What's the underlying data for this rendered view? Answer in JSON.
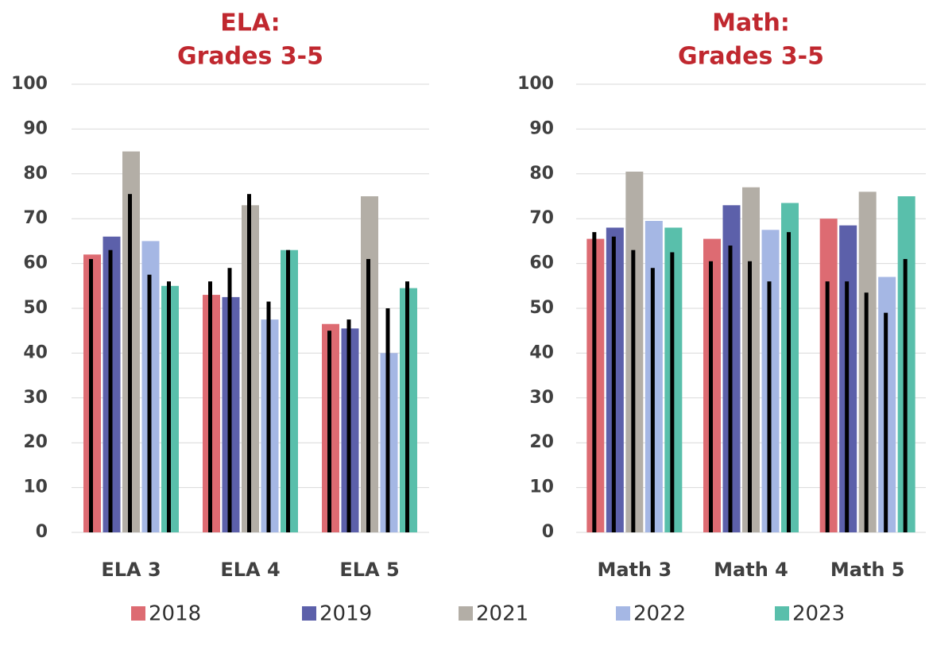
{
  "legend": [
    {
      "name": "2018",
      "color": "#dd6b72"
    },
    {
      "name": "2019",
      "color": "#5c60aa"
    },
    {
      "name": "2021",
      "color": "#b3aea6"
    },
    {
      "name": "2022",
      "color": "#a5b7e4"
    },
    {
      "name": "2023",
      "color": "#59bfab"
    }
  ],
  "overlay_color": "#000000",
  "chart_data": [
    {
      "type": "bar",
      "title_lines": [
        "ELA:",
        "Grades 3-5"
      ],
      "categories": [
        "ELA 3",
        "ELA 4",
        "ELA 5"
      ],
      "ylim": [
        0,
        100
      ],
      "yticks": [
        0,
        10,
        20,
        30,
        40,
        50,
        60,
        70,
        80,
        90,
        100
      ],
      "grid": true,
      "series": [
        {
          "values": [
            62,
            53,
            46.5
          ],
          "overlay_values": [
            61,
            56,
            45
          ]
        },
        {
          "values": [
            66,
            52.5,
            45.5
          ],
          "overlay_values": [
            63,
            59,
            47.5
          ]
        },
        {
          "values": [
            85,
            73,
            75
          ],
          "overlay_values": [
            75.5,
            75.5,
            61
          ]
        },
        {
          "values": [
            65,
            47.5,
            40
          ],
          "overlay_values": [
            57.5,
            51.5,
            50
          ]
        },
        {
          "values": [
            55,
            63,
            54.5
          ],
          "overlay_values": [
            56,
            63,
            56
          ]
        }
      ]
    },
    {
      "type": "bar",
      "title_lines": [
        "Math:",
        "Grades 3-5"
      ],
      "categories": [
        "Math 3",
        "Math 4",
        "Math 5"
      ],
      "ylim": [
        0,
        100
      ],
      "yticks": [
        0,
        10,
        20,
        30,
        40,
        50,
        60,
        70,
        80,
        90,
        100
      ],
      "grid": true,
      "series": [
        {
          "values": [
            65.5,
            65.5,
            70
          ],
          "overlay_values": [
            67,
            60.5,
            56
          ]
        },
        {
          "values": [
            68,
            73,
            68.5
          ],
          "overlay_values": [
            66,
            64,
            56
          ]
        },
        {
          "values": [
            80.5,
            77,
            76
          ],
          "overlay_values": [
            63,
            60.5,
            53.5
          ]
        },
        {
          "values": [
            69.5,
            67.5,
            57
          ],
          "overlay_values": [
            59,
            56,
            49
          ]
        },
        {
          "values": [
            68,
            73.5,
            75
          ],
          "overlay_values": [
            62.5,
            67,
            61
          ]
        }
      ]
    }
  ]
}
